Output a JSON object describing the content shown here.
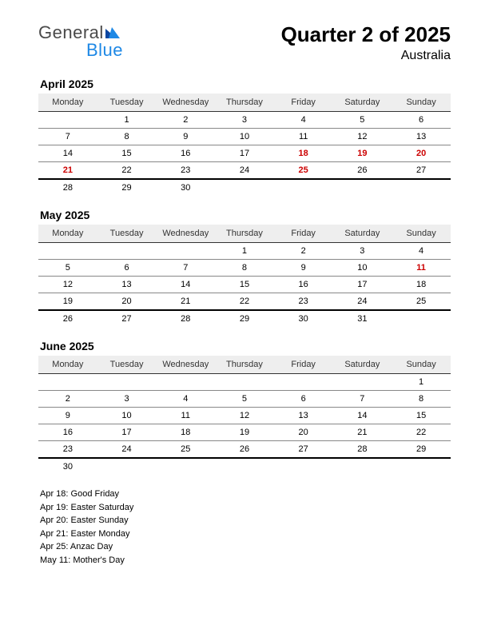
{
  "logo": {
    "top": "General",
    "bottom": "Blue",
    "tri_color": "#1e88e5"
  },
  "title": {
    "main": "Quarter 2 of 2025",
    "sub": "Australia"
  },
  "weekdays": [
    "Monday",
    "Tuesday",
    "Wednesday",
    "Thursday",
    "Friday",
    "Saturday",
    "Sunday"
  ],
  "months": [
    {
      "name": "April 2025",
      "rows": [
        [
          {
            "d": ""
          },
          {
            "d": "1"
          },
          {
            "d": "2"
          },
          {
            "d": "3"
          },
          {
            "d": "4"
          },
          {
            "d": "5"
          },
          {
            "d": "6"
          }
        ],
        [
          {
            "d": "7"
          },
          {
            "d": "8"
          },
          {
            "d": "9"
          },
          {
            "d": "10"
          },
          {
            "d": "11"
          },
          {
            "d": "12"
          },
          {
            "d": "13"
          }
        ],
        [
          {
            "d": "14"
          },
          {
            "d": "15"
          },
          {
            "d": "16"
          },
          {
            "d": "17"
          },
          {
            "d": "18",
            "h": true
          },
          {
            "d": "19",
            "h": true
          },
          {
            "d": "20",
            "h": true
          }
        ],
        [
          {
            "d": "21",
            "h": true
          },
          {
            "d": "22"
          },
          {
            "d": "23"
          },
          {
            "d": "24"
          },
          {
            "d": "25",
            "h": true
          },
          {
            "d": "26"
          },
          {
            "d": "27"
          }
        ]
      ],
      "tail": [
        {
          "d": "28"
        },
        {
          "d": "29"
        },
        {
          "d": "30"
        },
        {
          "d": ""
        },
        {
          "d": ""
        },
        {
          "d": ""
        },
        {
          "d": ""
        }
      ]
    },
    {
      "name": "May 2025",
      "rows": [
        [
          {
            "d": ""
          },
          {
            "d": ""
          },
          {
            "d": ""
          },
          {
            "d": "1"
          },
          {
            "d": "2"
          },
          {
            "d": "3"
          },
          {
            "d": "4"
          }
        ],
        [
          {
            "d": "5"
          },
          {
            "d": "6"
          },
          {
            "d": "7"
          },
          {
            "d": "8"
          },
          {
            "d": "9"
          },
          {
            "d": "10"
          },
          {
            "d": "11",
            "h": true
          }
        ],
        [
          {
            "d": "12"
          },
          {
            "d": "13"
          },
          {
            "d": "14"
          },
          {
            "d": "15"
          },
          {
            "d": "16"
          },
          {
            "d": "17"
          },
          {
            "d": "18"
          }
        ],
        [
          {
            "d": "19"
          },
          {
            "d": "20"
          },
          {
            "d": "21"
          },
          {
            "d": "22"
          },
          {
            "d": "23"
          },
          {
            "d": "24"
          },
          {
            "d": "25"
          }
        ]
      ],
      "tail": [
        {
          "d": "26"
        },
        {
          "d": "27"
        },
        {
          "d": "28"
        },
        {
          "d": "29"
        },
        {
          "d": "30"
        },
        {
          "d": "31"
        },
        {
          "d": ""
        }
      ]
    },
    {
      "name": "June 2025",
      "rows": [
        [
          {
            "d": ""
          },
          {
            "d": ""
          },
          {
            "d": ""
          },
          {
            "d": ""
          },
          {
            "d": ""
          },
          {
            "d": ""
          },
          {
            "d": "1"
          }
        ],
        [
          {
            "d": "2"
          },
          {
            "d": "3"
          },
          {
            "d": "4"
          },
          {
            "d": "5"
          },
          {
            "d": "6"
          },
          {
            "d": "7"
          },
          {
            "d": "8"
          }
        ],
        [
          {
            "d": "9"
          },
          {
            "d": "10"
          },
          {
            "d": "11"
          },
          {
            "d": "12"
          },
          {
            "d": "13"
          },
          {
            "d": "14"
          },
          {
            "d": "15"
          }
        ],
        [
          {
            "d": "16"
          },
          {
            "d": "17"
          },
          {
            "d": "18"
          },
          {
            "d": "19"
          },
          {
            "d": "20"
          },
          {
            "d": "21"
          },
          {
            "d": "22"
          }
        ],
        [
          {
            "d": "23"
          },
          {
            "d": "24"
          },
          {
            "d": "25"
          },
          {
            "d": "26"
          },
          {
            "d": "27"
          },
          {
            "d": "28"
          },
          {
            "d": "29"
          }
        ]
      ],
      "tail": [
        {
          "d": "30"
        },
        {
          "d": ""
        },
        {
          "d": ""
        },
        {
          "d": ""
        },
        {
          "d": ""
        },
        {
          "d": ""
        },
        {
          "d": ""
        }
      ]
    }
  ],
  "holidays": [
    "Apr 18: Good Friday",
    "Apr 19: Easter Saturday",
    "Apr 20: Easter Sunday",
    "Apr 21: Easter Monday",
    "Apr 25: Anzac Day",
    "May 11: Mother's Day"
  ],
  "colors": {
    "holiday": "#cc0000",
    "header_bg": "#eeeeee",
    "logo_gray": "#4a4a4a",
    "logo_blue": "#1e88e5"
  }
}
